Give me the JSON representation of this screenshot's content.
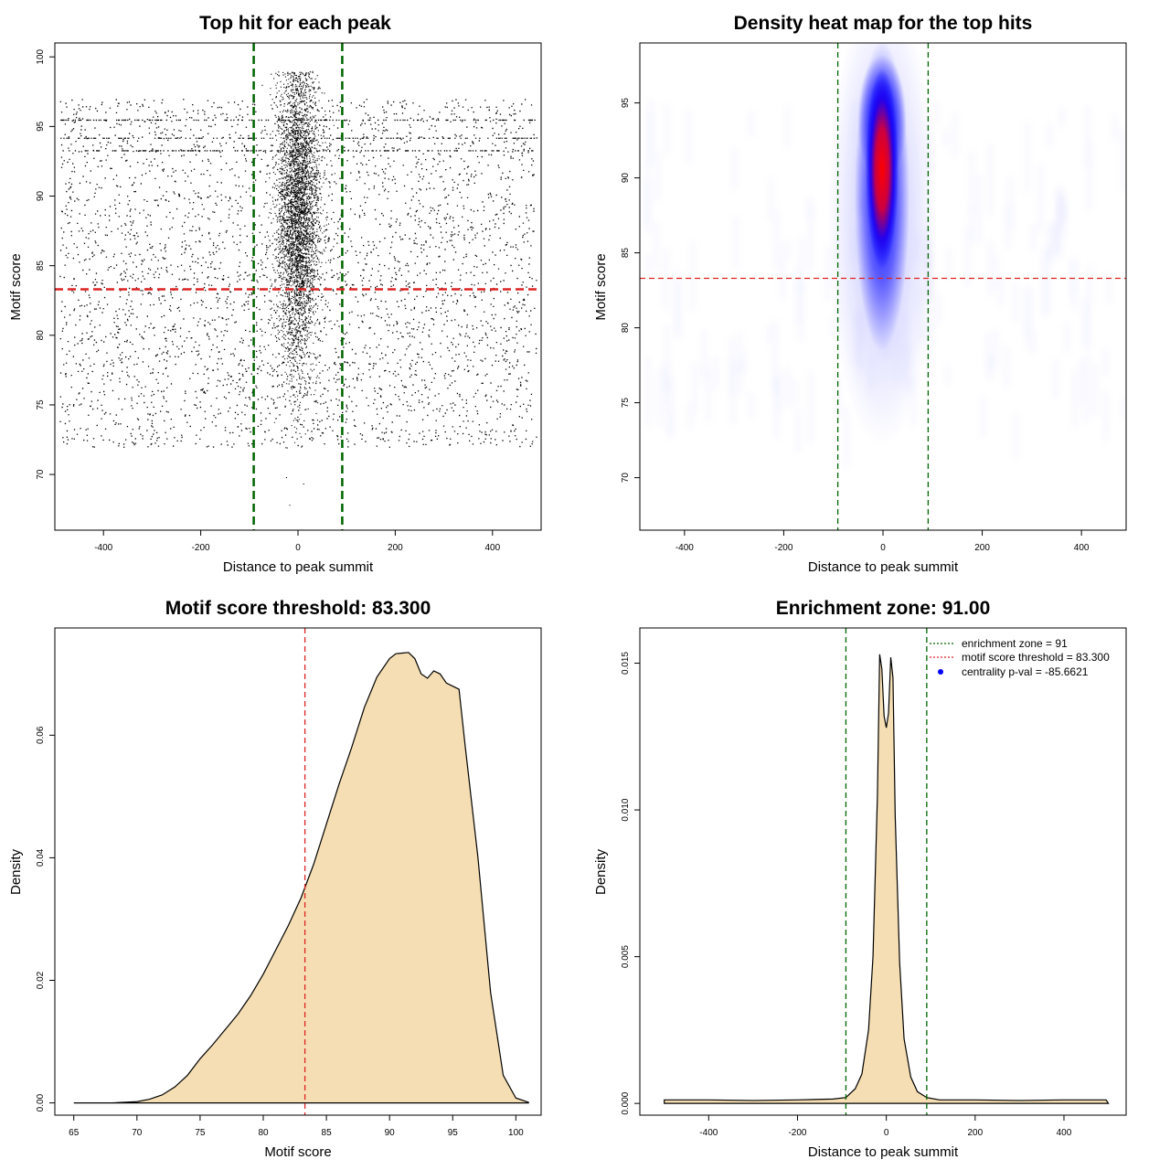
{
  "chart_data": [
    {
      "type": "scatter",
      "title": "Top hit for each peak",
      "xlabel": "Distance to peak summit",
      "ylabel": "Motif score",
      "xlim": [
        -500,
        500
      ],
      "ylim": [
        66,
        101
      ],
      "xticks": [
        -400,
        -200,
        0,
        200,
        400
      ],
      "yticks": [
        70,
        75,
        80,
        85,
        90,
        95,
        100
      ],
      "vlines": [
        -91,
        91
      ],
      "vline_color": "#006400",
      "hlines": [
        83.3
      ],
      "hline_color": "#dd2222",
      "points_color": "#000000",
      "series": [
        {
          "note": "dense central cluster",
          "x_center": 0,
          "x_spread": 22,
          "y_center": 88.5,
          "y_spread": 5.5
        },
        {
          "note": "uniform background",
          "x_range": [
            -490,
            490
          ],
          "y_range": [
            72,
            97
          ]
        }
      ]
    },
    {
      "type": "heatmap",
      "title": "Density heat map for the top hits",
      "xlabel": "Distance to peak summit",
      "ylabel": "Motif score",
      "xlim": [
        -490,
        490
      ],
      "ylim": [
        66.5,
        99
      ],
      "xticks": [
        -400,
        -200,
        0,
        200,
        400
      ],
      "yticks": [
        70,
        75,
        80,
        85,
        90,
        95
      ],
      "vlines": [
        -91,
        91
      ],
      "vline_color": "#006400",
      "hlines": [
        83.3
      ],
      "hline_color": "#dd2222",
      "colors": [
        "#ffffff",
        "#0000ff",
        "#ff0000"
      ],
      "hotspot": {
        "x": 0,
        "y": 90.5
      }
    },
    {
      "type": "area",
      "title": "Motif score threshold: 83.300",
      "xlabel": "Motif score",
      "ylabel": "Density",
      "xlim": [
        63.5,
        102
      ],
      "ylim": [
        -0.002,
        0.0775
      ],
      "xticks": [
        65,
        70,
        75,
        80,
        85,
        90,
        95,
        100
      ],
      "yticks": [
        0.0,
        0.02,
        0.04,
        0.06
      ],
      "ytick_labels": [
        "0.00",
        "0.02",
        "0.04",
        "0.06"
      ],
      "fill": "#f5deb3",
      "vlines": [
        83.3
      ],
      "vline_color": "#dd2222",
      "x": [
        65,
        68,
        70,
        71,
        72,
        73,
        74,
        75,
        76,
        77,
        78,
        79,
        80,
        81,
        82,
        83,
        84,
        85,
        86,
        87,
        88,
        89,
        90,
        90.5,
        91,
        91.5,
        92,
        92.5,
        93,
        93.5,
        94,
        94.5,
        95,
        95.5,
        96,
        97,
        98,
        99,
        100,
        101
      ],
      "y": [
        0,
        0,
        0.0002,
        0.0006,
        0.0013,
        0.0026,
        0.0045,
        0.0072,
        0.0095,
        0.012,
        0.0145,
        0.0175,
        0.021,
        0.025,
        0.029,
        0.0335,
        0.039,
        0.0455,
        0.052,
        0.058,
        0.0645,
        0.0695,
        0.0725,
        0.0733,
        0.0734,
        0.0735,
        0.0725,
        0.07,
        0.0693,
        0.0705,
        0.07,
        0.0685,
        0.068,
        0.0675,
        0.058,
        0.04,
        0.018,
        0.0045,
        0.0008,
        0.0001
      ]
    },
    {
      "type": "area",
      "title": "Enrichment zone: 91.00",
      "xlabel": "Distance to peak summit",
      "ylabel": "Density",
      "xlim": [
        -555,
        540
      ],
      "ylim": [
        -0.0004,
        0.0162
      ],
      "xticks": [
        -400,
        -200,
        0,
        200,
        400
      ],
      "yticks": [
        0.0,
        0.005,
        0.01,
        0.015
      ],
      "ytick_labels": [
        "0.000",
        "0.005",
        "0.010",
        "0.015"
      ],
      "fill": "#f5deb3",
      "vlines": [
        -91,
        91
      ],
      "vline_color": "#006400",
      "x": [
        -500,
        -400,
        -300,
        -200,
        -120,
        -91,
        -70,
        -55,
        -40,
        -30,
        -20,
        -15,
        -10,
        -5,
        0,
        5,
        10,
        15,
        20,
        30,
        40,
        55,
        70,
        91,
        120,
        200,
        300,
        400,
        495,
        500
      ],
      "y": [
        0.00012,
        0.00012,
        0.0001,
        0.00012,
        0.00015,
        0.0002,
        0.0005,
        0.001,
        0.0025,
        0.005,
        0.0105,
        0.0153,
        0.0148,
        0.0132,
        0.0128,
        0.0133,
        0.0152,
        0.0145,
        0.0098,
        0.0048,
        0.0022,
        0.0009,
        0.0004,
        0.0002,
        0.00012,
        0.00012,
        0.0001,
        0.00012,
        0.00012,
        0
      ],
      "legend": {
        "position": "top-right",
        "entries": [
          {
            "label": "enrichment zone = 91",
            "color": "#006400",
            "style": "dotted-line"
          },
          {
            "label": "motif score threshold = 83.300",
            "color": "#dd2222",
            "style": "dotted-line"
          },
          {
            "label": "centrality p-val = -85.6621",
            "color": "#0000ff",
            "style": "point"
          }
        ]
      }
    }
  ]
}
